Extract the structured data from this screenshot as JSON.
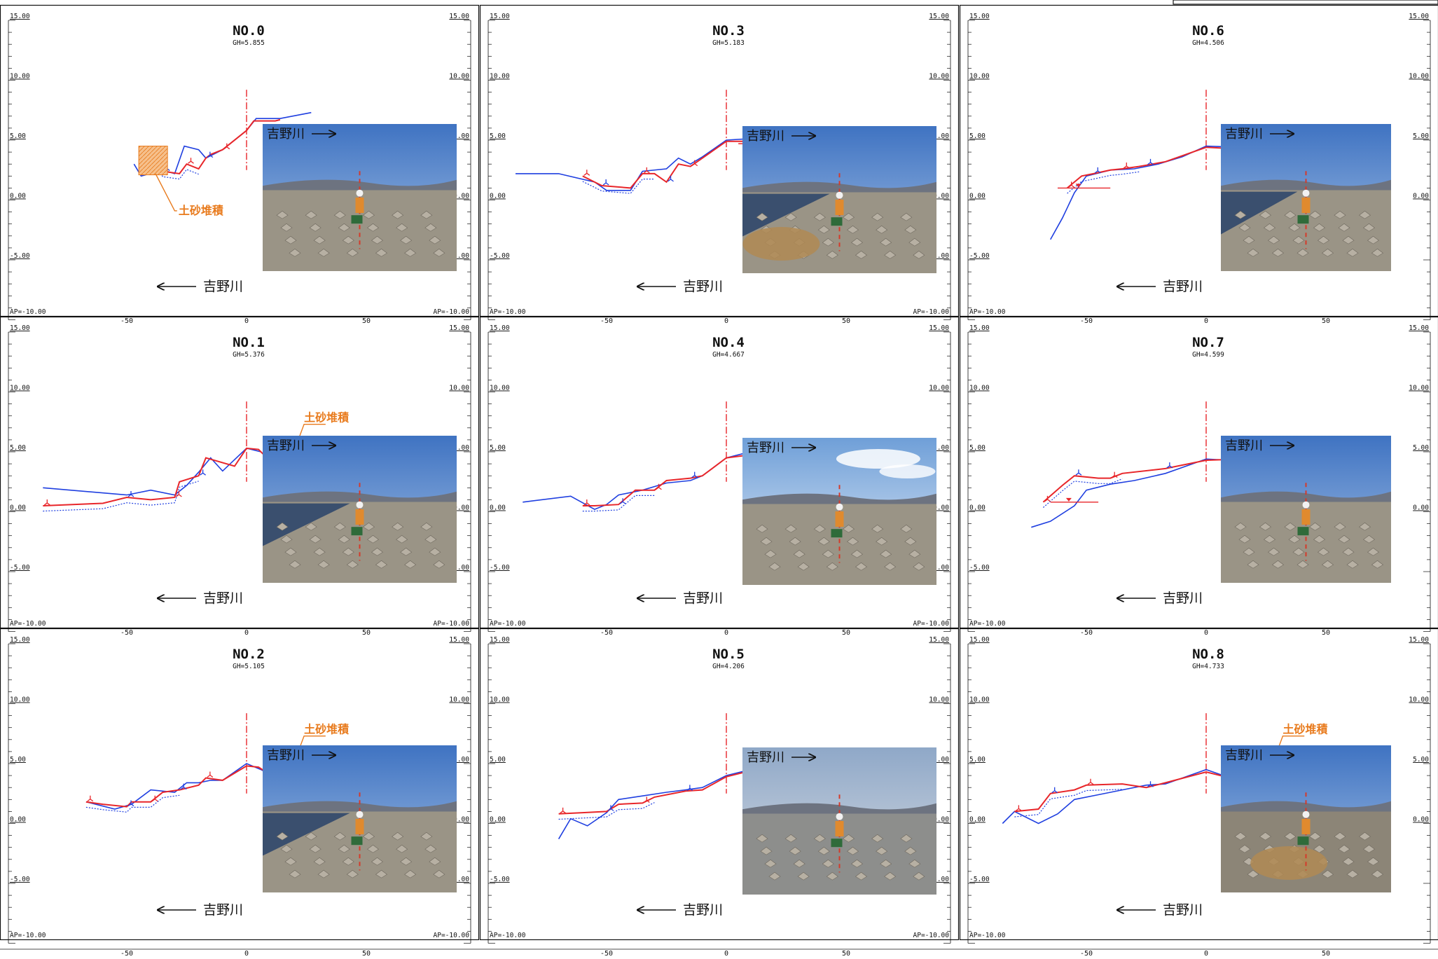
{
  "colors": {
    "frame": "#111111",
    "survey_red": "#e8262a",
    "survey_blue": "#1f3fe0",
    "deposit_orange": "#e87a1c",
    "deposit_fill": "#f3b27a",
    "sky": "#4f82c8",
    "ground": "#8f8a80"
  },
  "axis": {
    "y_ticks": [
      {
        "v": 15,
        "label": "15.00"
      },
      {
        "v": 10,
        "label": "10.00"
      },
      {
        "v": 5,
        "label": "5.00"
      },
      {
        "v": 0,
        "label": "0.00"
      },
      {
        "v": -5,
        "label": "-5.00"
      }
    ],
    "base_label": "AP=-10.00",
    "x_ticks": [
      {
        "v": -50,
        "label": "-50"
      },
      {
        "v": 0,
        "label": "0"
      },
      {
        "v": 50,
        "label": "50"
      }
    ]
  },
  "labels": {
    "river_up": "吉野川",
    "river_down": "吉野川",
    "deposit": "土砂堆積"
  },
  "sections": [
    {
      "id": "0",
      "title": "NO.0",
      "gh": "GH=5.855",
      "deposit": true,
      "red": [
        [
          -45,
          3.2
        ],
        [
          -38,
          3.5
        ],
        [
          -35,
          2.4
        ],
        [
          -28,
          2.2
        ],
        [
          -25,
          3.0
        ],
        [
          -20,
          2.6
        ],
        [
          -17,
          3.5
        ],
        [
          -15,
          3.8
        ],
        [
          -10,
          4.2
        ],
        [
          0,
          5.8
        ],
        [
          3,
          6.6
        ],
        [
          12,
          6.6
        ],
        [
          14,
          6.7
        ]
      ],
      "blue": [
        [
          -47,
          3.0
        ],
        [
          -44,
          2.0
        ],
        [
          -35,
          2.5
        ],
        [
          -30,
          2.2
        ],
        [
          -26,
          4.5
        ],
        [
          -20,
          4.2
        ],
        [
          -17,
          3.5
        ],
        [
          -10,
          4.2
        ],
        [
          0,
          5.8
        ],
        [
          4,
          6.8
        ],
        [
          14,
          6.8
        ],
        [
          27,
          7.3
        ]
      ],
      "water": null,
      "photo": "ground"
    },
    {
      "id": "1",
      "title": "NO.1",
      "gh": "GH=5.376",
      "deposit": true,
      "red": [
        [
          -85,
          0.5
        ],
        [
          -60,
          0.7
        ],
        [
          -50,
          1.2
        ],
        [
          -40,
          1.0
        ],
        [
          -30,
          1.2
        ],
        [
          -28,
          2.5
        ],
        [
          -20,
          3.0
        ],
        [
          -17,
          4.5
        ],
        [
          -5,
          3.8
        ],
        [
          0,
          5.3
        ],
        [
          5,
          5.2
        ],
        [
          10,
          4.2
        ],
        [
          18,
          4.0
        ],
        [
          25,
          4.2
        ]
      ],
      "blue": [
        [
          -85,
          2.0
        ],
        [
          -50,
          1.4
        ],
        [
          -40,
          1.8
        ],
        [
          -30,
          1.4
        ],
        [
          -25,
          2.2
        ],
        [
          -20,
          3.3
        ],
        [
          -15,
          4.5
        ],
        [
          -10,
          3.4
        ],
        [
          0,
          5.3
        ],
        [
          6,
          5.0
        ],
        [
          12,
          3.8
        ],
        [
          22,
          3.2
        ],
        [
          30,
          3.2
        ]
      ],
      "water": {
        "x1": 10,
        "x2": 32,
        "y": 4.8
      },
      "photo": "blocks"
    },
    {
      "id": "2",
      "title": "NO.2",
      "gh": "GH=5.105",
      "deposit": true,
      "red": [
        [
          -67,
          1.8
        ],
        [
          -60,
          1.6
        ],
        [
          -50,
          1.4
        ],
        [
          -48,
          1.8
        ],
        [
          -40,
          1.8
        ],
        [
          -35,
          2.6
        ],
        [
          -28,
          2.8
        ],
        [
          -20,
          3.2
        ],
        [
          -17,
          3.8
        ],
        [
          -10,
          3.6
        ],
        [
          0,
          4.8
        ],
        [
          5,
          4.7
        ],
        [
          12,
          3.8
        ],
        [
          18,
          3.6
        ]
      ],
      "blue": [
        [
          -67,
          1.8
        ],
        [
          -55,
          1.2
        ],
        [
          -48,
          1.6
        ],
        [
          -40,
          2.8
        ],
        [
          -30,
          2.6
        ],
        [
          -25,
          3.4
        ],
        [
          -20,
          3.4
        ],
        [
          -15,
          3.6
        ],
        [
          -10,
          3.6
        ],
        [
          0,
          5.0
        ],
        [
          6,
          4.5
        ],
        [
          15,
          3.5
        ],
        [
          25,
          4.0
        ],
        [
          40,
          3.5
        ]
      ],
      "water": {
        "x1": 10,
        "x2": 35,
        "y": 4.7
      },
      "photo": "water"
    },
    {
      "id": "3",
      "title": "NO.3",
      "gh": "GH=5.183",
      "deposit": false,
      "red": [
        [
          -60,
          2.0
        ],
        [
          -55,
          1.5
        ],
        [
          -52,
          1.2
        ],
        [
          -40,
          1.0
        ],
        [
          -35,
          2.2
        ],
        [
          -30,
          2.2
        ],
        [
          -25,
          1.5
        ],
        [
          -20,
          3.0
        ],
        [
          -15,
          2.8
        ],
        [
          -10,
          3.5
        ],
        [
          0,
          4.9
        ],
        [
          8,
          4.9
        ],
        [
          12,
          4.5
        ]
      ],
      "blue": [
        [
          -88,
          2.2
        ],
        [
          -70,
          2.2
        ],
        [
          -55,
          1.5
        ],
        [
          -50,
          0.8
        ],
        [
          -40,
          0.8
        ],
        [
          -35,
          2.4
        ],
        [
          -25,
          2.6
        ],
        [
          -20,
          3.5
        ],
        [
          -15,
          3.0
        ],
        [
          -10,
          3.6
        ],
        [
          0,
          5.0
        ],
        [
          8,
          5.1
        ],
        [
          12,
          3.5
        ],
        [
          25,
          3.0
        ]
      ],
      "water": {
        "x1": 5,
        "x2": 36,
        "y": 4.7
      },
      "photo": "road"
    },
    {
      "id": "4",
      "title": "NO.4",
      "gh": "GH=4.667",
      "deposit": false,
      "red": [
        [
          -60,
          0.5
        ],
        [
          -55,
          0.5
        ],
        [
          -45,
          0.6
        ],
        [
          -38,
          1.8
        ],
        [
          -30,
          1.8
        ],
        [
          -25,
          2.6
        ],
        [
          -15,
          2.8
        ],
        [
          -10,
          3.0
        ],
        [
          0,
          4.5
        ],
        [
          8,
          4.7
        ],
        [
          12,
          4.3
        ]
      ],
      "blue": [
        [
          -85,
          0.8
        ],
        [
          -65,
          1.3
        ],
        [
          -55,
          0.2
        ],
        [
          -50,
          0.6
        ],
        [
          -45,
          1.4
        ],
        [
          -35,
          1.8
        ],
        [
          -25,
          2.4
        ],
        [
          -15,
          2.6
        ],
        [
          -10,
          3.0
        ],
        [
          0,
          4.5
        ],
        [
          8,
          4.9
        ],
        [
          14,
          3.5
        ],
        [
          20,
          3.0
        ]
      ],
      "water": {
        "x1": 10,
        "x2": 36,
        "y": 4.7
      },
      "photo": "cloudy"
    },
    {
      "id": "5",
      "title": "NO.5",
      "gh": "GH=4.206",
      "deposit": false,
      "red": [
        [
          -70,
          0.8
        ],
        [
          -60,
          0.9
        ],
        [
          -50,
          1.0
        ],
        [
          -45,
          1.6
        ],
        [
          -35,
          1.7
        ],
        [
          -30,
          2.2
        ],
        [
          -17,
          2.7
        ],
        [
          -10,
          2.8
        ],
        [
          0,
          3.9
        ],
        [
          10,
          4.4
        ],
        [
          20,
          5.0
        ],
        [
          23,
          3.2
        ]
      ],
      "blue": [
        [
          -70,
          -1.3
        ],
        [
          -65,
          0.4
        ],
        [
          -58,
          -0.2
        ],
        [
          -50,
          0.9
        ],
        [
          -45,
          2.0
        ],
        [
          -35,
          2.3
        ],
        [
          -25,
          2.6
        ],
        [
          -17,
          2.8
        ],
        [
          -10,
          3.0
        ],
        [
          0,
          4.0
        ],
        [
          10,
          4.5
        ],
        [
          22,
          5.0
        ],
        [
          25,
          3.5
        ]
      ],
      "water": {
        "x1": 22,
        "x2": 47,
        "y": 4.4
      },
      "photo": "hazy"
    },
    {
      "id": "6",
      "title": "NO.6",
      "gh": "GH=4.506",
      "deposit": false,
      "red": [
        [
          -58,
          1.0
        ],
        [
          -52,
          2.0
        ],
        [
          -47,
          2.2
        ],
        [
          -40,
          2.5
        ],
        [
          -35,
          2.6
        ],
        [
          -28,
          2.8
        ],
        [
          -25,
          2.9
        ],
        [
          -17,
          3.2
        ],
        [
          0,
          4.4
        ],
        [
          10,
          4.3
        ],
        [
          20,
          4.6
        ],
        [
          30,
          5.0
        ],
        [
          36,
          4.6
        ]
      ],
      "blue": [
        [
          -65,
          -3.3
        ],
        [
          -60,
          -1.5
        ],
        [
          -55,
          0.6
        ],
        [
          -50,
          2.0
        ],
        [
          -40,
          2.5
        ],
        [
          -30,
          2.6
        ],
        [
          -20,
          3.0
        ],
        [
          -10,
          3.6
        ],
        [
          0,
          4.5
        ],
        [
          15,
          4.4
        ],
        [
          28,
          4.9
        ],
        [
          35,
          5.0
        ],
        [
          38,
          4.4
        ]
      ],
      "water": {
        "x1": -62,
        "x2": -40,
        "y": 1.0
      },
      "photo": "blocks"
    },
    {
      "id": "7",
      "title": "NO.7",
      "gh": "GH=4.599",
      "deposit": false,
      "red": [
        [
          -68,
          0.8
        ],
        [
          -60,
          2.2
        ],
        [
          -55,
          3.0
        ],
        [
          -45,
          2.8
        ],
        [
          -40,
          2.8
        ],
        [
          -35,
          3.2
        ],
        [
          -17,
          3.6
        ],
        [
          0,
          4.3
        ],
        [
          15,
          4.4
        ],
        [
          30,
          4.6
        ],
        [
          38,
          4.9
        ],
        [
          40,
          4.0
        ]
      ],
      "blue": [
        [
          -73,
          -1.3
        ],
        [
          -65,
          -0.8
        ],
        [
          -55,
          0.5
        ],
        [
          -50,
          1.8
        ],
        [
          -40,
          2.3
        ],
        [
          -30,
          2.6
        ],
        [
          -17,
          3.2
        ],
        [
          0,
          4.4
        ],
        [
          20,
          4.2
        ],
        [
          35,
          4.5
        ],
        [
          38,
          5.0
        ],
        [
          41,
          3.9
        ]
      ],
      "water": {
        "x1": -65,
        "x2": -45,
        "y": 0.8
      },
      "photo": "ground"
    },
    {
      "id": "8",
      "title": "NO.8",
      "gh": "GH=4.733",
      "deposit": true,
      "red": [
        [
          -80,
          1.0
        ],
        [
          -70,
          1.2
        ],
        [
          -65,
          2.5
        ],
        [
          -55,
          2.8
        ],
        [
          -50,
          3.2
        ],
        [
          -35,
          3.3
        ],
        [
          -25,
          3.0
        ],
        [
          -17,
          3.4
        ],
        [
          0,
          4.3
        ],
        [
          10,
          3.8
        ],
        [
          20,
          3.8
        ],
        [
          30,
          3.6
        ],
        [
          38,
          3.7
        ]
      ],
      "blue": [
        [
          -85,
          0.0
        ],
        [
          -80,
          1.0
        ],
        [
          -70,
          0.0
        ],
        [
          -62,
          0.8
        ],
        [
          -55,
          2.0
        ],
        [
          -45,
          2.4
        ],
        [
          -35,
          2.8
        ],
        [
          -25,
          3.2
        ],
        [
          -17,
          3.3
        ],
        [
          0,
          4.5
        ],
        [
          10,
          3.8
        ],
        [
          30,
          4.0
        ],
        [
          40,
          4.3
        ],
        [
          45,
          4.5
        ]
      ],
      "water": {
        "x1": 18,
        "x2": 32,
        "y": 3.9
      },
      "photo": "straw"
    }
  ]
}
